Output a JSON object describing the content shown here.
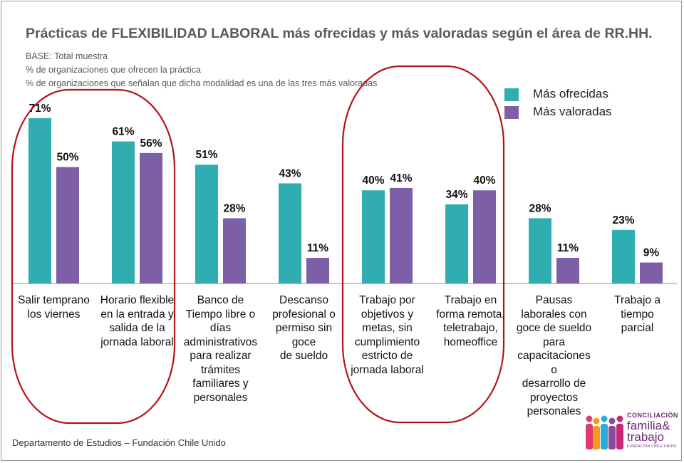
{
  "header": {
    "title": "Prácticas de FLEXIBILIDAD LABORAL más ofrecidas y más valoradas según el área de RR.HH.",
    "notes": [
      "BASE:  Total muestra",
      "%  de organizaciones que ofrecen la práctica",
      "% de organizaciones que señalan que dicha modalidad es una de las tres más valoradas"
    ]
  },
  "legend": {
    "items": [
      {
        "label": "Más ofrecidas",
        "color": "#2fadb0"
      },
      {
        "label": "Más valoradas",
        "color": "#7c5fa6"
      }
    ]
  },
  "chart_data": {
    "type": "bar",
    "title": "Prácticas de FLEXIBILIDAD LABORAL más ofrecidas y más valoradas según el área de RR.HH.",
    "categories": [
      "Salir temprano los viernes",
      "Horario flexible en la entrada y salida de la jornada laboral",
      "Banco de Tiempo libre o días administrativos para realizar trámites familiares y personales",
      "Descanso profesional o permiso sin goce de sueldo",
      "Trabajo por objetivos y metas, sin cumplimiento estricto de jornada laboral",
      "Trabajo en forma remota, teletrabajo, homeoffice",
      "Pausas laborales con goce de sueldo para capacitaciones o desarrollo de proyectos personales",
      "Trabajo a tiempo parcial"
    ],
    "series": [
      {
        "name": "Más ofrecidas",
        "values": [
          71,
          61,
          51,
          43,
          40,
          34,
          28,
          23
        ],
        "color": "#2fadb0"
      },
      {
        "name": "Más valoradas",
        "values": [
          50,
          56,
          28,
          11,
          41,
          40,
          11,
          9
        ],
        "color": "#7c5fa6"
      }
    ],
    "value_suffix": "%",
    "ylim": [
      0,
      75
    ],
    "grid": false,
    "legend_position": "top-right",
    "annotations": "red ovals around categories 1-2 and 5-6"
  },
  "footer": {
    "source": "Departamento de Estudios – Fundación Chile Unido"
  },
  "logo": {
    "line1": "CONCILIACIÓN",
    "line2": "familia&",
    "line3": "trabajo",
    "line4": "FUNDACIÓN CHILE UNIDO",
    "colors": [
      "#e23a6e",
      "#f39a1e",
      "#2fa9d6",
      "#8a4b9e",
      "#c7267a"
    ]
  }
}
